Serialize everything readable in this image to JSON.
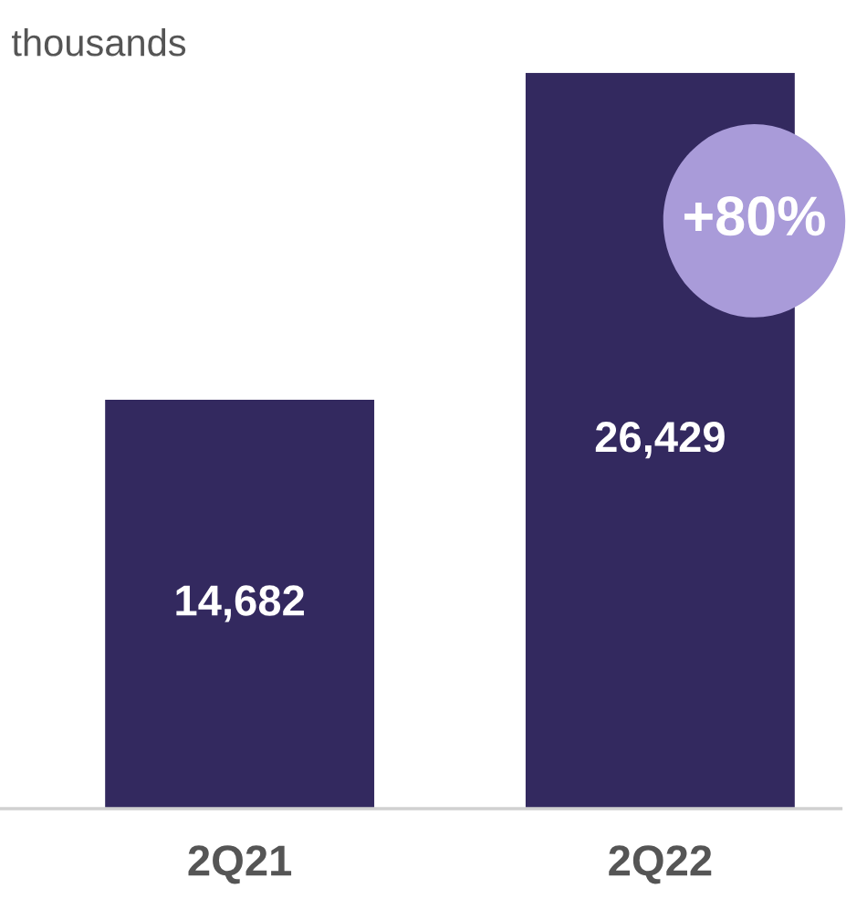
{
  "chart_data": {
    "type": "bar",
    "subtitle": "thousands",
    "categories": [
      "2Q21",
      "2Q22"
    ],
    "values": [
      14682,
      26429
    ],
    "value_labels": [
      "14,682",
      "26,429"
    ],
    "color": "#33295f",
    "annotations": [
      "+80%"
    ],
    "grid": false,
    "legend": false
  }
}
